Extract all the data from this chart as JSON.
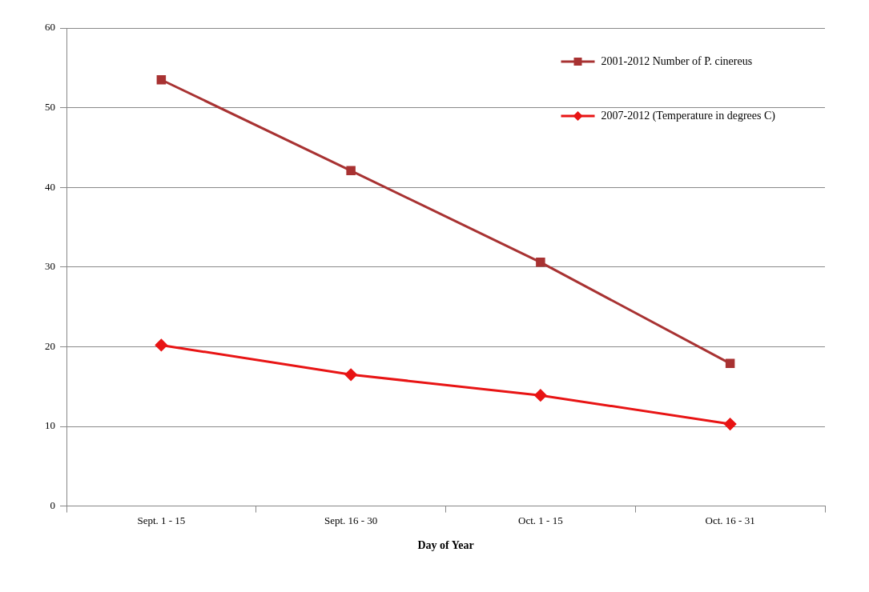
{
  "chart_data": {
    "type": "line",
    "xlabel": "Day of Year",
    "categories": [
      "Sept. 1 - 15",
      "Sept. 16 - 30",
      "Oct. 1 - 15",
      "Oct. 16 - 31"
    ],
    "series": [
      {
        "name": "2001-2012 Number of P. cinereus",
        "color": "#a83232",
        "marker": "square",
        "values": [
          53.5,
          42.1,
          30.6,
          17.9
        ]
      },
      {
        "name": "2007-2012 (Temperature in degrees C)",
        "color": "#e81414",
        "marker": "diamond",
        "values": [
          20.2,
          16.5,
          13.9,
          10.3
        ]
      }
    ],
    "ylim": [
      0,
      60
    ],
    "yticks": [
      0,
      10,
      20,
      30,
      40,
      50,
      60
    ],
    "grid": "y",
    "legend": "top right",
    "line_style": "solid"
  }
}
